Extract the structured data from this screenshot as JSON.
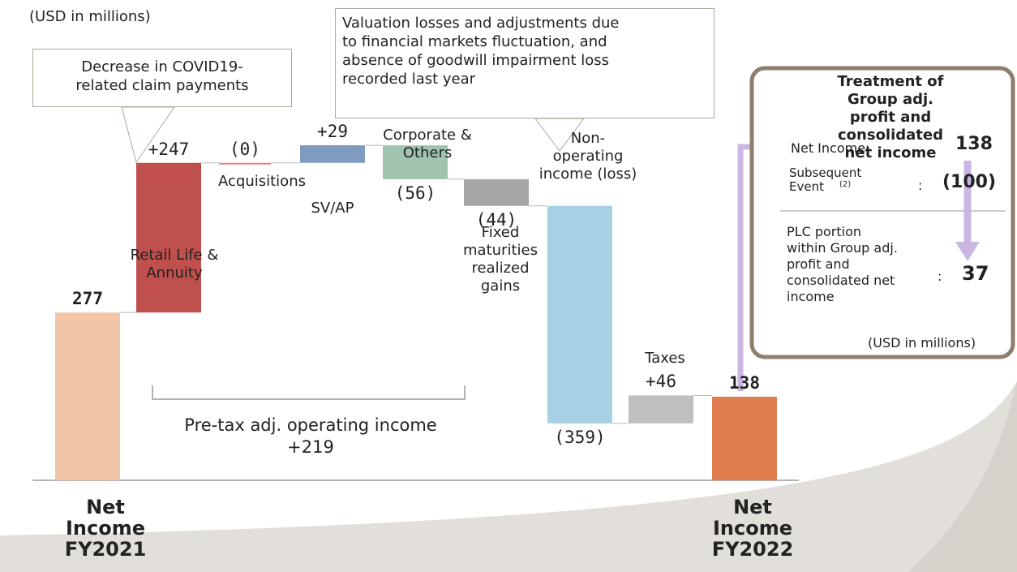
{
  "chart_data": {
    "type": "waterfall",
    "unit_note": "(USD in millions)",
    "categories": [
      "Net\nIncome\nFY2021",
      "Retail Life &\nAnnuity",
      "Acquisitions",
      "SV/AP",
      "Corporate &\nOthers",
      "Fixed\nmaturities\nrealized\ngains",
      "Non-\noperating\nincome (loss)",
      "Taxes",
      "Net\nIncome\nFY2022"
    ],
    "values": [
      277,
      247,
      0,
      29,
      -56,
      -44,
      -359,
      46,
      138
    ],
    "value_labels": [
      "277",
      "+247",
      "(0)",
      "+29",
      "(56)",
      "(44)",
      "(359)",
      "+46",
      "138"
    ],
    "colors": [
      "#f2c4a8",
      "#c0504d",
      "#e88080",
      "#7f9cc0",
      "#a0c4b0",
      "#a6a6a6",
      "#a8d0e4",
      "#bfbfbf",
      "#e07e50"
    ],
    "ylim": [
      0,
      600
    ],
    "annotations": [
      "Decrease in COVID19-\nrelated claim payments",
      "Valuation losses and adjustments due\nto financial markets fluctuation, and\nabsence of goodwill impairment loss\nrecorded last year",
      "Pre-tax adj. operating income\n+219"
    ],
    "side_box": {
      "title": "Treatment of\nGroup adj. profit and\nconsolidated net income",
      "net_income_label": "Net Income:",
      "net_income_value": "138",
      "subsequent_label": "Subsequent\nEvent",
      "subsequent_sup": "(2)",
      "subsequent_value": "(100)",
      "plc_label": "PLC portion\nwithin Group adj.\nprofit and\nconsolidated net\nincome",
      "plc_value": "37",
      "colon": ":",
      "unit_note": "(USD in millions)"
    }
  }
}
